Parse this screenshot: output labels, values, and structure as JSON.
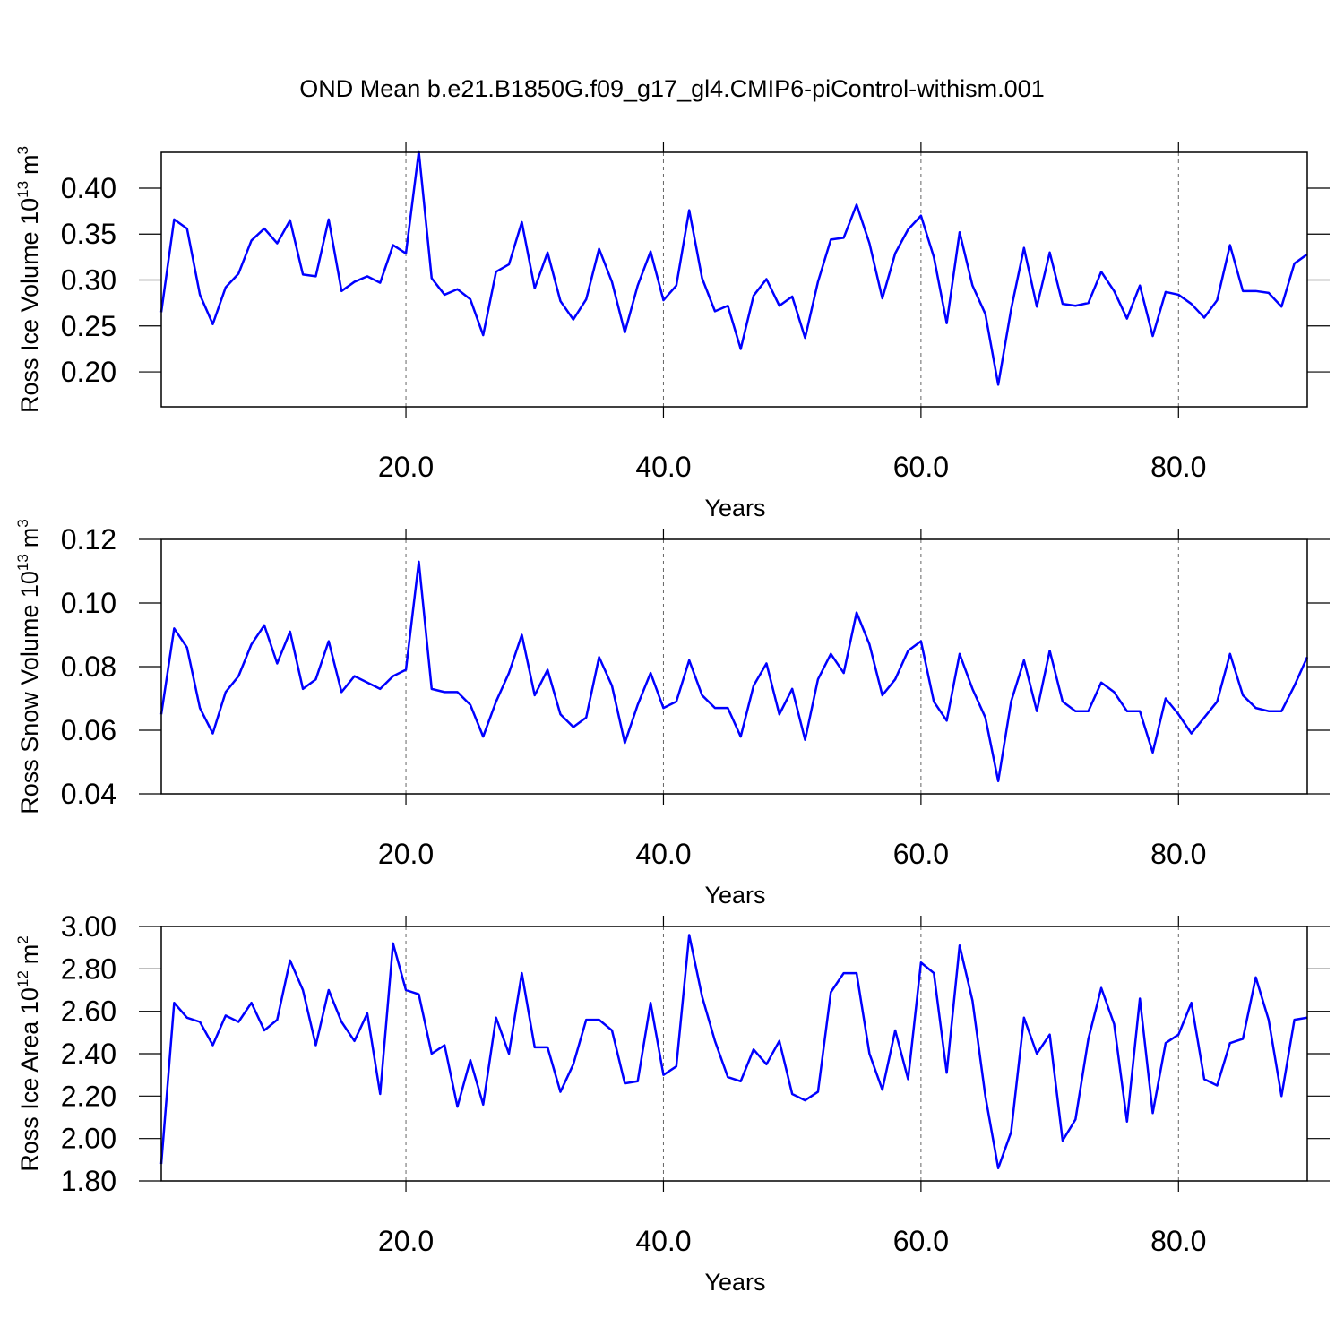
{
  "title": "OND Mean b.e21.B1850G.f09_g17_gl4.CMIP6-piControl-withism.001",
  "chart_data": [
    {
      "type": "line",
      "xlabel": "Years",
      "ylabel": "Ross Ice Volume 10",
      "ylabel_exp": "13",
      "ylabel_unit": "m",
      "ylabel_unit_exp": "3",
      "xlim": [
        1,
        90
      ],
      "ylim": [
        0.162,
        0.439
      ],
      "grid": "x",
      "xticks": [
        {
          "value": 20,
          "label": "20.0"
        },
        {
          "value": 40,
          "label": "40.0"
        },
        {
          "value": 60,
          "label": "60.0"
        },
        {
          "value": 80,
          "label": "80.0"
        }
      ],
      "yticks": [
        {
          "value": 0.2,
          "label": "0.20"
        },
        0.25,
        {
          "value": 0.3,
          "label": "0.30"
        },
        0.35,
        {
          "value": 0.4,
          "label": "0.40"
        }
      ],
      "x": [
        1,
        2,
        3,
        4,
        5,
        6,
        7,
        8,
        9,
        10,
        11,
        12,
        13,
        14,
        15,
        16,
        17,
        18,
        19,
        20,
        21,
        22,
        23,
        24,
        25,
        26,
        27,
        28,
        29,
        30,
        31,
        32,
        33,
        34,
        35,
        36,
        37,
        38,
        39,
        40,
        41,
        42,
        43,
        44,
        45,
        46,
        47,
        48,
        49,
        50,
        51,
        52,
        53,
        54,
        55,
        56,
        57,
        58,
        59,
        60,
        61,
        62,
        63,
        64,
        65,
        66,
        67,
        68,
        69,
        70,
        71,
        72,
        73,
        74,
        75,
        76,
        77,
        78,
        79,
        80,
        81,
        82,
        83,
        84,
        85,
        86,
        87,
        88,
        89,
        90
      ],
      "series": [
        {
          "color": "#0000ff",
          "values": [
            0.265,
            0.366,
            0.356,
            0.284,
            0.252,
            0.292,
            0.307,
            0.343,
            0.356,
            0.34,
            0.365,
            0.306,
            0.304,
            0.366,
            0.288,
            0.298,
            0.304,
            0.297,
            0.338,
            0.329,
            0.44,
            0.302,
            0.284,
            0.29,
            0.279,
            0.24,
            0.309,
            0.317,
            0.363,
            0.291,
            0.33,
            0.277,
            0.257,
            0.279,
            0.334,
            0.298,
            0.243,
            0.294,
            0.331,
            0.278,
            0.294,
            0.376,
            0.302,
            0.266,
            0.272,
            0.225,
            0.283,
            0.301,
            0.272,
            0.282,
            0.237,
            0.298,
            0.344,
            0.346,
            0.382,
            0.34,
            0.28,
            0.329,
            0.355,
            0.37,
            0.325,
            0.253,
            0.352,
            0.294,
            0.263,
            0.186,
            0.268,
            0.335,
            0.271,
            0.33,
            0.274,
            0.272,
            0.275,
            0.309,
            0.288,
            0.258,
            0.294,
            0.239,
            0.287,
            0.284,
            0.274,
            0.259,
            0.278,
            0.338,
            0.288,
            0.288,
            0.286,
            0.271,
            0.318,
            0.328
          ]
        }
      ]
    },
    {
      "type": "line",
      "xlabel": "Years",
      "ylabel": "Ross Snow Volume 10",
      "ylabel_exp": "13",
      "ylabel_unit": "m",
      "ylabel_unit_exp": "3",
      "xlim": [
        1,
        90
      ],
      "ylim": [
        0.04,
        0.12
      ],
      "grid": "x",
      "xticks": [
        {
          "value": 20,
          "label": "20.0"
        },
        {
          "value": 40,
          "label": "40.0"
        },
        {
          "value": 60,
          "label": "60.0"
        },
        {
          "value": 80,
          "label": "80.0"
        }
      ],
      "yticks": [
        0.04,
        0.06,
        0.08,
        {
          "value": 0.1,
          "label": "0.10"
        },
        0.12
      ],
      "x": [
        1,
        2,
        3,
        4,
        5,
        6,
        7,
        8,
        9,
        10,
        11,
        12,
        13,
        14,
        15,
        16,
        17,
        18,
        19,
        20,
        21,
        22,
        23,
        24,
        25,
        26,
        27,
        28,
        29,
        30,
        31,
        32,
        33,
        34,
        35,
        36,
        37,
        38,
        39,
        40,
        41,
        42,
        43,
        44,
        45,
        46,
        47,
        48,
        49,
        50,
        51,
        52,
        53,
        54,
        55,
        56,
        57,
        58,
        59,
        60,
        61,
        62,
        63,
        64,
        65,
        66,
        67,
        68,
        69,
        70,
        71,
        72,
        73,
        74,
        75,
        76,
        77,
        78,
        79,
        80,
        81,
        82,
        83,
        84,
        85,
        86,
        87,
        88,
        89,
        90
      ],
      "series": [
        {
          "color": "#0000ff",
          "values": [
            0.065,
            0.092,
            0.086,
            0.067,
            0.059,
            0.072,
            0.077,
            0.087,
            0.093,
            0.081,
            0.091,
            0.073,
            0.076,
            0.088,
            0.072,
            0.077,
            0.075,
            0.073,
            0.077,
            0.079,
            0.113,
            0.073,
            0.072,
            0.072,
            0.068,
            0.058,
            0.069,
            0.078,
            0.09,
            0.071,
            0.079,
            0.065,
            0.061,
            0.064,
            0.083,
            0.074,
            0.056,
            0.068,
            0.078,
            0.067,
            0.069,
            0.082,
            0.071,
            0.067,
            0.067,
            0.058,
            0.074,
            0.081,
            0.065,
            0.073,
            0.057,
            0.076,
            0.084,
            0.078,
            0.097,
            0.087,
            0.071,
            0.076,
            0.085,
            0.088,
            0.069,
            0.063,
            0.084,
            0.073,
            0.064,
            0.044,
            0.069,
            0.082,
            0.066,
            0.085,
            0.069,
            0.066,
            0.066,
            0.075,
            0.072,
            0.066,
            0.066,
            0.053,
            0.07,
            0.065,
            0.059,
            0.064,
            0.069,
            0.084,
            0.071,
            0.067,
            0.066,
            0.066,
            0.074,
            0.083
          ]
        }
      ]
    },
    {
      "type": "line",
      "xlabel": "Years",
      "ylabel": "Ross Ice Area 10",
      "ylabel_exp": "12",
      "ylabel_unit": "m",
      "ylabel_unit_exp": "2",
      "xlim": [
        1,
        90
      ],
      "ylim": [
        1.8,
        3.0
      ],
      "grid": "x",
      "xticks": [
        {
          "value": 20,
          "label": "20.0"
        },
        {
          "value": 40,
          "label": "40.0"
        },
        {
          "value": 60,
          "label": "60.0"
        },
        {
          "value": 80,
          "label": "80.0"
        }
      ],
      "yticks": [
        {
          "value": 1.8,
          "label": "1.80"
        },
        {
          "value": 2.0,
          "label": "2.00"
        },
        {
          "value": 2.2,
          "label": "2.20"
        },
        {
          "value": 2.4,
          "label": "2.40"
        },
        {
          "value": 2.6,
          "label": "2.60"
        },
        {
          "value": 2.8,
          "label": "2.80"
        },
        {
          "value": 3.0,
          "label": "3.00"
        }
      ],
      "x": [
        1,
        2,
        3,
        4,
        5,
        6,
        7,
        8,
        9,
        10,
        11,
        12,
        13,
        14,
        15,
        16,
        17,
        18,
        19,
        20,
        21,
        22,
        23,
        24,
        25,
        26,
        27,
        28,
        29,
        30,
        31,
        32,
        33,
        34,
        35,
        36,
        37,
        38,
        39,
        40,
        41,
        42,
        43,
        44,
        45,
        46,
        47,
        48,
        49,
        50,
        51,
        52,
        53,
        54,
        55,
        56,
        57,
        58,
        59,
        60,
        61,
        62,
        63,
        64,
        65,
        66,
        67,
        68,
        69,
        70,
        71,
        72,
        73,
        74,
        75,
        76,
        77,
        78,
        79,
        80,
        81,
        82,
        83,
        84,
        85,
        86,
        87,
        88,
        89,
        90
      ],
      "series": [
        {
          "color": "#0000ff",
          "values": [
            1.88,
            2.64,
            2.57,
            2.55,
            2.44,
            2.58,
            2.55,
            2.64,
            2.51,
            2.56,
            2.84,
            2.7,
            2.44,
            2.7,
            2.55,
            2.46,
            2.59,
            2.21,
            2.92,
            2.7,
            2.68,
            2.4,
            2.44,
            2.15,
            2.37,
            2.16,
            2.57,
            2.4,
            2.78,
            2.43,
            2.43,
            2.22,
            2.35,
            2.56,
            2.56,
            2.51,
            2.26,
            2.27,
            2.64,
            2.3,
            2.34,
            2.96,
            2.67,
            2.46,
            2.29,
            2.27,
            2.42,
            2.35,
            2.46,
            2.21,
            2.18,
            2.22,
            2.69,
            2.78,
            2.78,
            2.4,
            2.23,
            2.51,
            2.28,
            2.83,
            2.78,
            2.31,
            2.91,
            2.65,
            2.2,
            1.86,
            2.03,
            2.57,
            2.4,
            2.49,
            1.99,
            2.09,
            2.47,
            2.71,
            2.54,
            2.08,
            2.66,
            2.12,
            2.45,
            2.49,
            2.64,
            2.28,
            2.25,
            2.45,
            2.47,
            2.76,
            2.56,
            2.2,
            2.56,
            2.57
          ]
        }
      ]
    }
  ]
}
